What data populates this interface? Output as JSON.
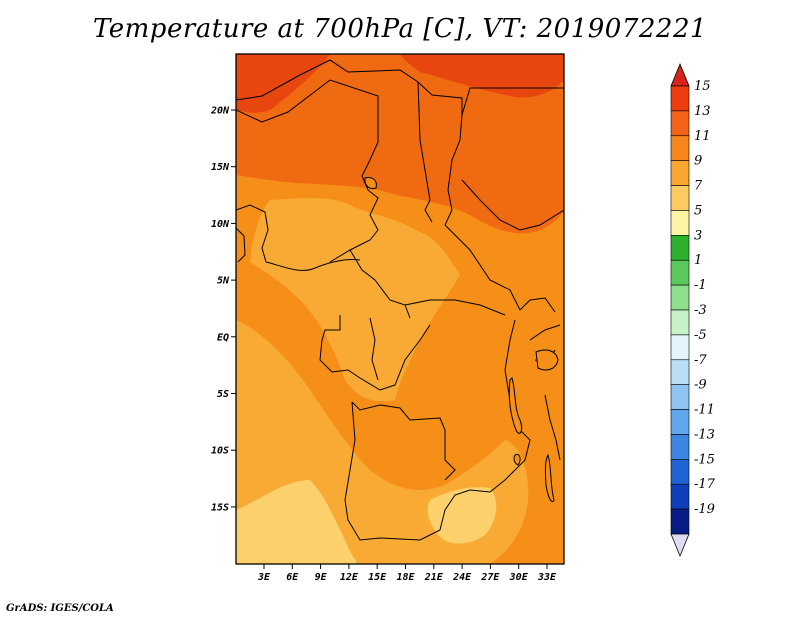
{
  "title": "Temperature at 700hPa [C], VT: 2019072221",
  "credit": "GrADS: IGES/COLA",
  "map": {
    "latitude_labels": [
      "20N",
      "15N",
      "10N",
      "5N",
      "EQ",
      "5S",
      "10S",
      "15S"
    ],
    "longitude_labels": [
      "3E",
      "6E",
      "9E",
      "12E",
      "15E",
      "18E",
      "21E",
      "24E",
      "27E",
      "30E",
      "33E"
    ],
    "fill_colors": {
      "c13_15": "#e8460f",
      "c11_13": "#ef6a10",
      "c9_11": "#f58f17",
      "c7_9": "#f9aa35",
      "c5_7": "#fcd06a",
      "lake": "#f58f17"
    },
    "border_color": "#000000"
  },
  "colorbar": {
    "labels": [
      "15",
      "13",
      "11",
      "9",
      "7",
      "5",
      "3",
      "1",
      "-1",
      "-3",
      "-5",
      "-7",
      "-9",
      "-11",
      "-13",
      "-15",
      "-17",
      "-19"
    ],
    "top_color": "#d7241a",
    "bottom_color": "#dcdcf5",
    "colors": [
      "#ee3e10",
      "#f36418",
      "#f7861c",
      "#f9a732",
      "#fbcb62",
      "#fcf4a2",
      "#2db12d",
      "#5cc95c",
      "#8edf8e",
      "#c7f1c7",
      "#e2f5fb",
      "#b7def6",
      "#8ec3f2",
      "#5ea7ec",
      "#3c86e2",
      "#1f63d5",
      "#0f3fbc",
      "#081c86"
    ]
  }
}
